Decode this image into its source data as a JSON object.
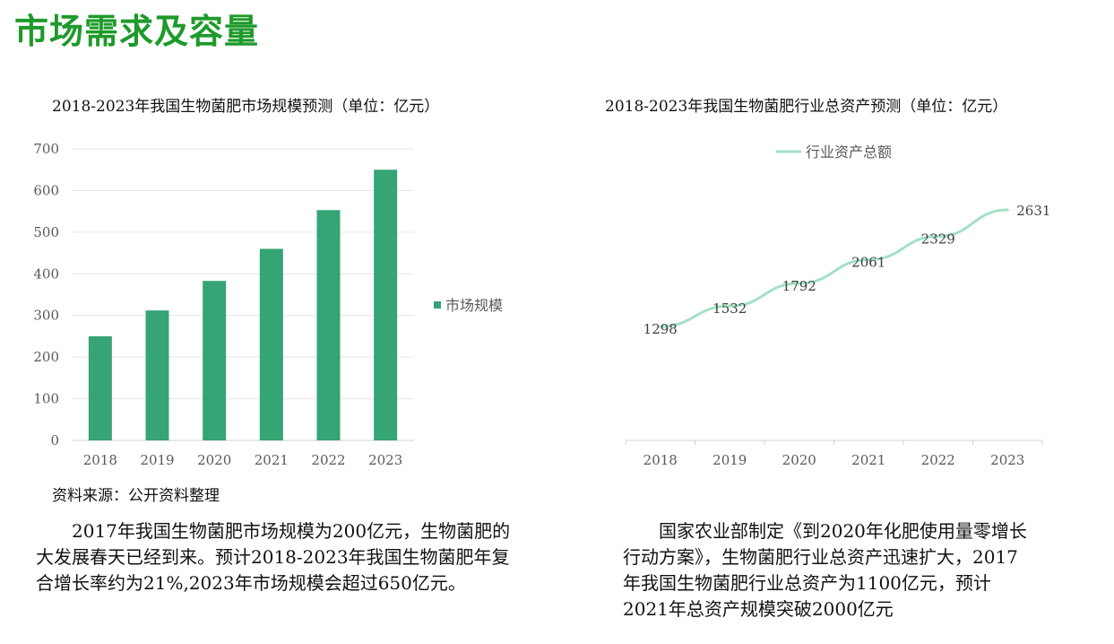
{
  "page": {
    "title": "市场需求及容量",
    "source": "资料来源：公开资料整理",
    "left_paragraph": "2017年我国生物菌肥市场规模为200亿元，生物菌肥的大发展春天已经到来。预计2018-2023年我国生物菌肥年复合增长率约为21%,2023年市场规模会超过650亿元。",
    "right_paragraph": "国家农业部制定《到2020年化肥使用量零增长行动方案》，生物菌肥行业总资产迅速扩大，2017年我国生物菌肥行业总资产为1100亿元，预计2021年总资产规模突破2000亿元"
  },
  "chart_data": [
    {
      "type": "bar",
      "title": "2018-2023年我国生物菌肥市场规模预测（单位：亿元）",
      "categories": [
        "2018",
        "2019",
        "2020",
        "2021",
        "2022",
        "2023"
      ],
      "series": [
        {
          "name": "市场规模",
          "values": [
            250,
            312,
            383,
            460,
            553,
            650
          ],
          "color": "#36a474"
        }
      ],
      "ylim": [
        0,
        700
      ],
      "yticks": [
        0,
        100,
        200,
        300,
        400,
        500,
        600,
        700
      ],
      "grid": true,
      "legend": "right"
    },
    {
      "type": "line",
      "title": "2018-2023年我国生物菌肥行业总资产预测（单位：亿元）",
      "categories": [
        "2018",
        "2019",
        "2020",
        "2021",
        "2022",
        "2023"
      ],
      "series": [
        {
          "name": "行业资产总额",
          "values": [
            1298,
            1532,
            1792,
            2061,
            2329,
            2631
          ],
          "color": "#a3e0c4"
        }
      ],
      "data_labels": true,
      "grid": false,
      "legend": "top"
    }
  ]
}
